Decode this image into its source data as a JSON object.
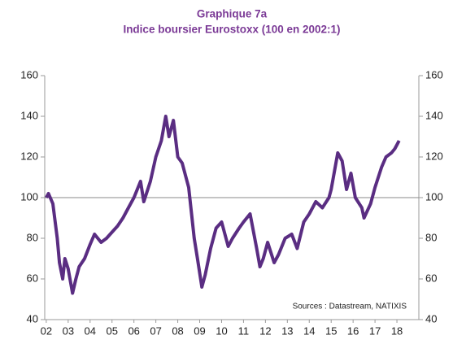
{
  "chart_data": {
    "type": "line",
    "title": "Graphique 7a",
    "subtitle": "Indice boursier Eurostoxx (100 en 2002:1)",
    "annotation": "Sources : Datastream, NATIXIS",
    "x": [
      2002.0,
      2002.1,
      2002.3,
      2002.5,
      2002.6,
      2002.75,
      2002.85,
      2003.0,
      2003.2,
      2003.35,
      2003.5,
      2003.75,
      2004.0,
      2004.2,
      2004.5,
      2004.75,
      2005.0,
      2005.25,
      2005.5,
      2005.75,
      2006.0,
      2006.3,
      2006.45,
      2006.75,
      2007.0,
      2007.25,
      2007.45,
      2007.6,
      2007.8,
      2008.0,
      2008.2,
      2008.5,
      2008.75,
      2008.9,
      2009.1,
      2009.25,
      2009.5,
      2009.75,
      2010.0,
      2010.3,
      2010.5,
      2010.8,
      2011.0,
      2011.3,
      2011.6,
      2011.75,
      2011.9,
      2012.1,
      2012.4,
      2012.6,
      2012.9,
      2013.2,
      2013.45,
      2013.75,
      2014.0,
      2014.3,
      2014.6,
      2014.9,
      2015.0,
      2015.3,
      2015.5,
      2015.7,
      2015.9,
      2016.1,
      2016.4,
      2016.5,
      2016.8,
      2017.0,
      2017.3,
      2017.5,
      2017.75,
      2017.9,
      2018.0,
      2018.1
    ],
    "series": [
      {
        "color": "#5a2d82",
        "values": [
          100,
          102,
          97,
          80,
          68,
          60,
          70,
          65,
          53,
          60,
          66,
          70,
          77,
          82,
          78,
          80,
          83,
          86,
          90,
          95,
          100,
          108,
          98,
          108,
          120,
          128,
          140,
          130,
          138,
          120,
          117,
          105,
          80,
          70,
          56,
          62,
          75,
          85,
          88,
          76,
          80,
          85,
          88,
          92,
          75,
          66,
          70,
          78,
          68,
          72,
          80,
          82,
          75,
          88,
          92,
          98,
          95,
          100,
          104,
          122,
          118,
          104,
          112,
          100,
          95,
          90,
          97,
          105,
          115,
          120,
          122,
          124,
          126,
          128
        ]
      }
    ],
    "xlim": [
      2001.93,
      2019.0
    ],
    "xticks": [
      {
        "value": 2002,
        "label": "02"
      },
      {
        "value": 2003,
        "label": "03"
      },
      {
        "value": 2004,
        "label": "04"
      },
      {
        "value": 2005,
        "label": "05"
      },
      {
        "value": 2006,
        "label": "06"
      },
      {
        "value": 2007,
        "label": "07"
      },
      {
        "value": 2008,
        "label": "08"
      },
      {
        "value": 2009,
        "label": "09"
      },
      {
        "value": 2010,
        "label": "10"
      },
      {
        "value": 2011,
        "label": "11"
      },
      {
        "value": 2012,
        "label": "12"
      },
      {
        "value": 2013,
        "label": "13"
      },
      {
        "value": 2014,
        "label": "14"
      },
      {
        "value": 2015,
        "label": "15"
      },
      {
        "value": 2016,
        "label": "16"
      },
      {
        "value": 2017,
        "label": "17"
      },
      {
        "value": 2018,
        "label": "18"
      }
    ],
    "ylim": [
      40,
      160
    ],
    "yticks": [
      40,
      60,
      80,
      100,
      120,
      140,
      160
    ],
    "y2lim": [
      40,
      160
    ],
    "y2ticks": [
      40,
      60,
      80,
      100,
      120,
      140,
      160
    ],
    "reference_line": 100
  }
}
